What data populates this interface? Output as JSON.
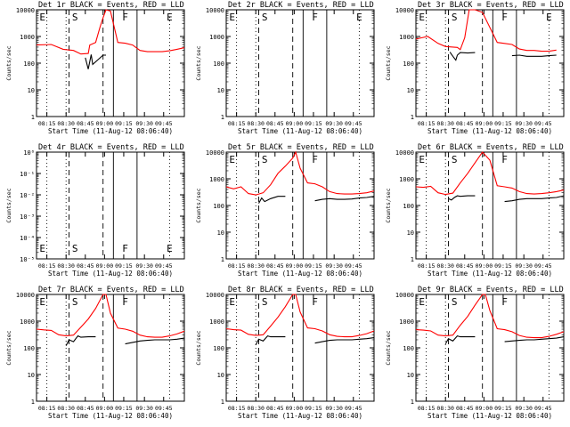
{
  "plot": {
    "xlabel": "Start Time (11-Aug-12 08:06:40)",
    "ylabel": "Counts/sec",
    "xticks": [
      "08:15",
      "08:30",
      "08:45",
      "09:00",
      "09:15",
      "09:30",
      "09:45"
    ],
    "log_ticks": [
      "1",
      "10",
      "100",
      "1000",
      "10000"
    ],
    "sci_ticks": [
      "10⁻⁵",
      "10⁻⁴",
      "10⁻³",
      "10⁻²",
      "10⁻¹",
      "10⁰"
    ],
    "legend_suffix": "BLACK = Events, RED = LLD",
    "colors": {
      "events": "#000000",
      "lld": "#ff0000",
      "axes": "#000000"
    }
  },
  "chart_data": [
    {
      "type": "line",
      "title": "Det 1r BLACK = Events, RED = LLD",
      "yscale": "log",
      "ylim": [
        1,
        10000
      ],
      "has_data": true,
      "region_letters": [
        "E",
        "S",
        "F",
        "E"
      ],
      "series": [
        {
          "name": "Events",
          "color": "#000000",
          "x": [
            5,
            15,
            25,
            30,
            33,
            35,
            37,
            38,
            45,
            47,
            48,
            52,
            55,
            60,
            70,
            80,
            90,
            95,
            100
          ],
          "y": [
            null,
            null,
            null,
            null,
            160,
            60,
            210,
            90,
            200,
            200,
            null,
            null,
            null,
            null,
            null,
            null,
            null,
            null,
            null
          ]
        },
        {
          "name": "LLD",
          "color": "#ff0000",
          "x": [
            0,
            10,
            18,
            25,
            30,
            35,
            36,
            40,
            43,
            45,
            47,
            50,
            55,
            60,
            65,
            70,
            75,
            80,
            85,
            90,
            95,
            100
          ],
          "y": [
            480,
            500,
            330,
            300,
            220,
            230,
            480,
            600,
            2300,
            5000,
            10000,
            9000,
            600,
            560,
            480,
            300,
            270,
            270,
            270,
            290,
            330,
            380
          ]
        }
      ]
    },
    {
      "type": "line",
      "title": "Det 2r BLACK = Events, RED = LLD",
      "yscale": "log",
      "ylim": [
        1,
        10000
      ],
      "has_data": false,
      "region_letters": [
        "E",
        "S",
        "F",
        "E"
      ],
      "series": []
    },
    {
      "type": "line",
      "title": "Det 3r BLACK = Events, RED = LLD",
      "yscale": "log",
      "ylim": [
        1,
        10000
      ],
      "has_data": true,
      "region_letters": [
        "E",
        "S",
        "F",
        "E"
      ],
      "series": [
        {
          "name": "Events",
          "color": "#000000",
          "x": [
            0,
            15,
            20,
            23,
            25,
            27,
            28,
            30,
            35,
            40,
            42,
            45,
            55,
            60,
            65,
            70,
            75,
            80,
            85,
            90,
            95
          ],
          "y": [
            null,
            null,
            null,
            260,
            180,
            130,
            200,
            250,
            240,
            250,
            null,
            null,
            null,
            null,
            190,
            200,
            180,
            180,
            180,
            190,
            200
          ]
        },
        {
          "name": "LLD",
          "color": "#ff0000",
          "x": [
            0,
            8,
            15,
            20,
            25,
            28,
            30,
            33,
            36,
            40,
            45,
            55,
            60,
            65,
            70,
            75,
            80,
            85,
            90,
            95
          ],
          "y": [
            800,
            1000,
            550,
            420,
            400,
            390,
            320,
            900,
            10000,
            10000,
            8000,
            600,
            550,
            500,
            340,
            300,
            300,
            280,
            280,
            310
          ]
        }
      ]
    },
    {
      "type": "line",
      "title": "Det 4r BLACK = Events, RED = LLD",
      "yscale": "log",
      "ylim": [
        1e-05,
        1
      ],
      "has_data": false,
      "region_letters": [
        "E",
        "S",
        "F",
        "E"
      ],
      "series": []
    },
    {
      "type": "line",
      "title": "Det 5r BLACK = Events, RED = LLD",
      "yscale": "log",
      "ylim": [
        1,
        10000
      ],
      "has_data": true,
      "region_letters": [
        "S",
        "F",
        "E"
      ],
      "series": [
        {
          "name": "Events",
          "color": "#000000",
          "x": [
            5,
            10,
            14,
            18,
            22,
            24,
            26,
            30,
            35,
            40,
            45,
            50,
            55,
            60,
            65,
            70,
            75,
            80,
            85,
            90,
            95,
            100
          ],
          "y": [
            null,
            null,
            null,
            null,
            120,
            190,
            140,
            180,
            220,
            220,
            null,
            null,
            null,
            150,
            170,
            180,
            170,
            170,
            175,
            190,
            200,
            220
          ]
        },
        {
          "name": "LLD",
          "color": "#ff0000",
          "x": [
            0,
            5,
            10,
            15,
            20,
            25,
            30,
            35,
            40,
            45,
            47,
            50,
            55,
            60,
            65,
            70,
            75,
            80,
            85,
            90,
            95,
            100
          ],
          "y": [
            500,
            420,
            500,
            280,
            250,
            300,
            600,
            1600,
            3000,
            6000,
            10000,
            2500,
            700,
            650,
            500,
            330,
            280,
            270,
            270,
            280,
            300,
            350
          ]
        }
      ]
    },
    {
      "type": "line",
      "title": "Det 6r BLACK = Events, RED = LLD",
      "yscale": "log",
      "ylim": [
        1,
        10000
      ],
      "has_data": true,
      "region_letters": [
        "S",
        "F",
        "E"
      ],
      "series": [
        {
          "name": "Events",
          "color": "#000000",
          "x": [
            15,
            20,
            22,
            24,
            26,
            28,
            30,
            35,
            40,
            45,
            50,
            55,
            60,
            65,
            70,
            75,
            80,
            85,
            90,
            95,
            100
          ],
          "y": [
            null,
            null,
            180,
            160,
            200,
            230,
            220,
            230,
            230,
            null,
            null,
            null,
            140,
            150,
            170,
            180,
            180,
            180,
            190,
            200,
            230
          ]
        },
        {
          "name": "LLD",
          "color": "#ff0000",
          "x": [
            0,
            5,
            10,
            15,
            20,
            25,
            30,
            35,
            40,
            45,
            50,
            55,
            60,
            65,
            70,
            75,
            80,
            85,
            90,
            95,
            100
          ],
          "y": [
            500,
            480,
            520,
            300,
            260,
            290,
            700,
            1600,
            4000,
            10000,
            5000,
            550,
            500,
            450,
            330,
            280,
            270,
            280,
            300,
            330,
            380
          ]
        }
      ]
    },
    {
      "type": "line",
      "title": "Det 7r BLACK = Events, RED = LLD",
      "yscale": "log",
      "ylim": [
        1,
        10000
      ],
      "has_data": true,
      "region_letters": [
        "S",
        "F",
        "E"
      ],
      "series": [
        {
          "name": "Events",
          "color": "#000000",
          "x": [
            15,
            18,
            20,
            22,
            25,
            28,
            30,
            35,
            40,
            45,
            50,
            55,
            60,
            65,
            70,
            75,
            80,
            85,
            90,
            95,
            100
          ],
          "y": [
            null,
            null,
            120,
            200,
            170,
            280,
            250,
            260,
            260,
            null,
            null,
            null,
            140,
            160,
            180,
            190,
            200,
            200,
            200,
            210,
            230
          ]
        },
        {
          "name": "LLD",
          "color": "#ff0000",
          "x": [
            0,
            5,
            10,
            15,
            20,
            25,
            30,
            35,
            40,
            45,
            47,
            50,
            55,
            60,
            65,
            70,
            75,
            80,
            85,
            90,
            95,
            100
          ],
          "y": [
            500,
            470,
            450,
            310,
            280,
            300,
            600,
            1200,
            3000,
            10000,
            10000,
            2000,
            550,
            500,
            420,
            300,
            260,
            250,
            250,
            280,
            330,
            420
          ]
        }
      ]
    },
    {
      "type": "line",
      "title": "Det 8r BLACK = Events, RED = LLD",
      "yscale": "log",
      "ylim": [
        1,
        10000
      ],
      "has_data": true,
      "region_letters": [
        "S",
        "F",
        "E"
      ],
      "series": [
        {
          "name": "Events",
          "color": "#000000",
          "x": [
            15,
            18,
            20,
            22,
            25,
            28,
            30,
            35,
            40,
            45,
            50,
            55,
            60,
            65,
            70,
            75,
            80,
            85,
            90,
            95,
            100
          ],
          "y": [
            null,
            null,
            130,
            210,
            180,
            280,
            260,
            260,
            260,
            null,
            null,
            null,
            150,
            170,
            190,
            200,
            200,
            200,
            210,
            220,
            240
          ]
        },
        {
          "name": "LLD",
          "color": "#ff0000",
          "x": [
            0,
            5,
            10,
            15,
            20,
            25,
            30,
            35,
            40,
            45,
            47,
            50,
            55,
            60,
            65,
            70,
            75,
            80,
            85,
            90,
            95,
            100
          ],
          "y": [
            520,
            480,
            460,
            320,
            290,
            310,
            650,
            1400,
            3500,
            10000,
            10000,
            2200,
            560,
            520,
            430,
            310,
            270,
            260,
            260,
            290,
            340,
            430
          ]
        }
      ]
    },
    {
      "type": "line",
      "title": "Det 9r BLACK = Events, RED = LLD",
      "yscale": "log",
      "ylim": [
        1,
        10000
      ],
      "has_data": true,
      "region_letters": [
        "S",
        "F",
        "E"
      ],
      "series": [
        {
          "name": "Events",
          "color": "#000000",
          "x": [
            15,
            18,
            20,
            22,
            25,
            28,
            30,
            35,
            40,
            45,
            50,
            55,
            60,
            65,
            70,
            75,
            80,
            85,
            90,
            95,
            100
          ],
          "y": [
            null,
            null,
            140,
            220,
            180,
            280,
            260,
            260,
            260,
            null,
            null,
            null,
            170,
            180,
            190,
            200,
            200,
            210,
            220,
            230,
            260
          ]
        },
        {
          "name": "LLD",
          "color": "#ff0000",
          "x": [
            0,
            5,
            10,
            15,
            20,
            25,
            30,
            35,
            40,
            45,
            47,
            50,
            55,
            60,
            65,
            70,
            75,
            80,
            85,
            90,
            95,
            100
          ],
          "y": [
            480,
            460,
            430,
            300,
            280,
            300,
            700,
            1500,
            4000,
            10000,
            10000,
            2500,
            520,
            480,
            400,
            290,
            250,
            240,
            240,
            270,
            320,
            400
          ]
        }
      ]
    }
  ]
}
